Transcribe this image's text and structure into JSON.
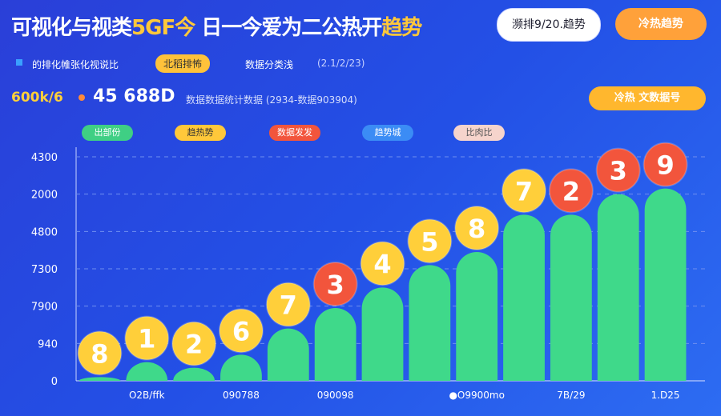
{
  "header": {
    "title": [
      "可视化与视类",
      "5GF今",
      " 日一今爱为二公热开",
      "趋势"
    ],
    "buttons": [
      "濒排9/20.趋势",
      "冷热趋势"
    ]
  },
  "legend": [
    "的排化帷张化视说比",
    "北稻排怖",
    "数据分类浅",
    "(2.1/2/23)"
  ],
  "stats": {
    "left": "600k/6",
    "main": "45 688D",
    "note": "数据数据统计数据 (2934-数据903904)",
    "button": "冷热 文数据号"
  },
  "chart_data": {
    "type": "bar",
    "filters": [
      "出部份",
      "趋热势",
      "数据发发",
      "趋势城",
      "比肉比"
    ],
    "y_axis_labels": [
      "0",
      "940",
      "7900",
      "7300",
      "4800",
      "2000",
      "4300"
    ],
    "ylim": [
      0,
      6
    ],
    "categories": [
      null,
      "O2B/ffk",
      null,
      "090788",
      null,
      "090098",
      null,
      null,
      "●O9900mo",
      null,
      "7B/29",
      null,
      "1.D25"
    ],
    "values": [
      0.1,
      0.5,
      0.35,
      0.7,
      1.4,
      1.95,
      2.5,
      3.1,
      3.45,
      4.45,
      4.45,
      5.0,
      5.15
    ],
    "color": "#3fd98a",
    "badges": [
      8,
      1,
      2,
      6,
      7,
      3,
      4,
      5,
      8,
      7,
      2,
      3,
      9
    ],
    "badge_colors": [
      "#ffcf3a",
      "#ffcf3a",
      "#ffcf3a",
      "#ffcf3a",
      "#ffcf3a",
      "#f2553c",
      "#ffcf3a",
      "#ffcf3a",
      "#ffcf3a",
      "#ffcf3a",
      "#f2553c",
      "#f2553c",
      "#f2553c"
    ]
  }
}
